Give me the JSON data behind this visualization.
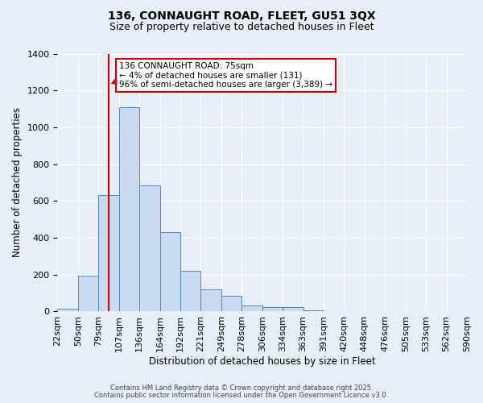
{
  "title1": "136, CONNAUGHT ROAD, FLEET, GU51 3QX",
  "title2": "Size of property relative to detached houses in Fleet",
  "xlabel": "Distribution of detached houses by size in Fleet",
  "ylabel": "Number of detached properties",
  "bar_values": [
    15,
    193,
    630,
    1110,
    685,
    430,
    220,
    120,
    83,
    33,
    22,
    22,
    8,
    3,
    0,
    0,
    0,
    0
  ],
  "bin_labels": [
    "22sqm",
    "50sqm",
    "79sqm",
    "107sqm",
    "136sqm",
    "164sqm",
    "192sqm",
    "221sqm",
    "249sqm",
    "278sqm",
    "306sqm",
    "334sqm",
    "363sqm",
    "391sqm",
    "420sqm",
    "448sqm",
    "476sqm",
    "505sqm",
    "533sqm",
    "562sqm",
    "590sqm"
  ],
  "bar_color": "#c9d9f0",
  "bar_edge_color": "#5588bb",
  "background_color": "#e8eef8",
  "grid_color": "#ffffff",
  "vline_color": "#cc0000",
  "vline_pos": 2.5,
  "annotation_title": "136 CONNAUGHT ROAD: 75sqm",
  "annotation_line1": "← 4% of detached houses are smaller (131)",
  "annotation_line2": "96% of semi-detached houses are larger (3,389) →",
  "annotation_box_color": "#ffffff",
  "annotation_box_edge": "#cc0000",
  "ylim": [
    0,
    1400
  ],
  "yticks": [
    0,
    200,
    400,
    600,
    800,
    1000,
    1200,
    1400
  ],
  "footer1": "Contains HM Land Registry data © Crown copyright and database right 2025.",
  "footer2": "Contains public sector information licensed under the Open Government Licence v3.0."
}
